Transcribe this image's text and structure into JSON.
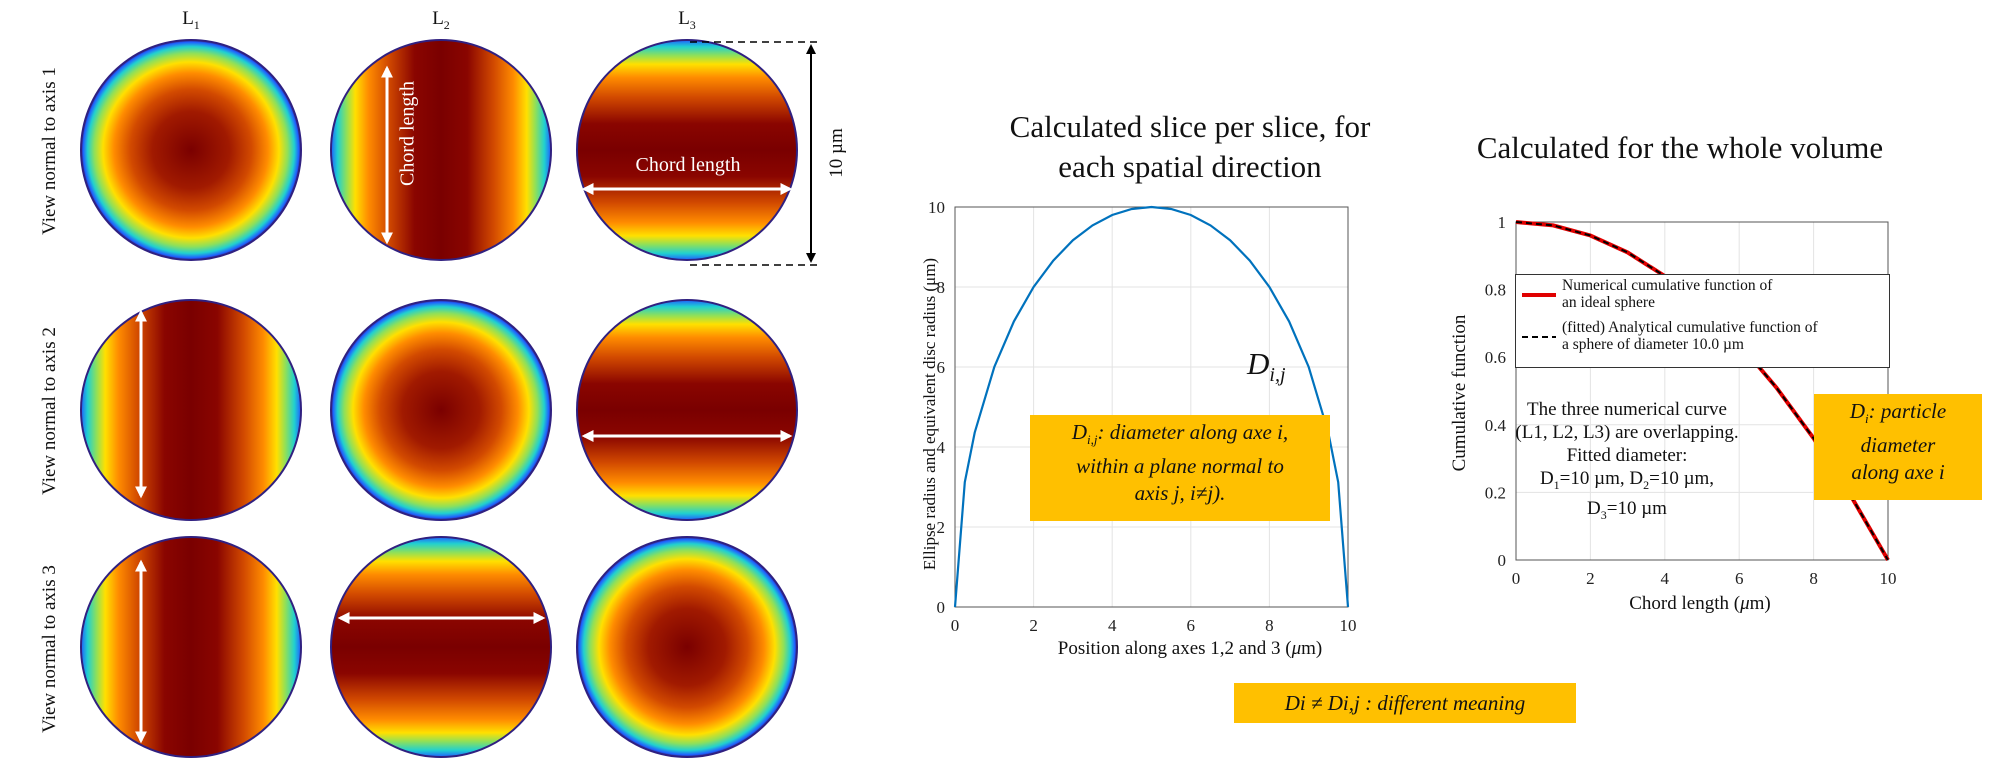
{
  "columns": [
    "L",
    "L",
    "L"
  ],
  "column_subs": [
    "1",
    "2",
    "3"
  ],
  "rows": [
    "View normal to axis 1",
    "View normal to axis 2",
    "View normal to axis 3"
  ],
  "panel_labels": {
    "chord_vertical": "Chord length",
    "chord_horizontal": "Chord length",
    "dimension": "10 µm"
  },
  "titles": {
    "slice_line1": "Calculated slice per slice, for",
    "slice_line2": "each spatial direction",
    "volume": "Calculated for the whole volume"
  },
  "notes": {
    "dij_label_main": "D",
    "dij_label_sub": "i,j",
    "dij_desc_sym": "D",
    "dij_desc_sub": "i,j",
    "dij_desc_line1": ": diameter along axe i,",
    "dij_desc_line2": "within a plane normal to",
    "dij_desc_line3": "axis j, i≠j).",
    "di_sym": "D",
    "di_sub": "i",
    "di_line1": ": particle",
    "di_line2": "diameter",
    "di_line3": "along axe i",
    "bottom": "Di ≠ Di,j : different meaning"
  },
  "legend": {
    "entry1_line1": "Numerical cumulative function of",
    "entry1_line2": "an ideal sphere",
    "entry2_line1": "(fitted) Analytical cumulative function of",
    "entry2_line2": "a sphere of diameter 10.0 µm"
  },
  "annotation": {
    "line1": "The three numerical curve",
    "line2": "(L1, L2, L3) are overlapping.",
    "line3": "Fitted diameter:",
    "d1": "D",
    "d1_sub": "1",
    "d1_val": "=10 µm, ",
    "d2": "D",
    "d2_sub": "2",
    "d2_val": "=10 µm,",
    "d3": "D",
    "d3_sub": "3",
    "d3_val": "=10 µm"
  },
  "colors": {
    "line_blue": "#0072bd",
    "line_red": "#e00000",
    "note_bg": "#ffc000"
  },
  "chart_data": [
    {
      "type": "line",
      "title": "",
      "xlabel_main": "Position along axes 1,2 and 3 (",
      "xlabel_unit": "μ",
      "xlabel_end": "m)",
      "ylabel": "Ellipse radius and equivalent disc radius (μm)",
      "xlim": [
        0,
        10
      ],
      "ylim": [
        0,
        10
      ],
      "xticks": [
        0,
        2,
        4,
        6,
        8,
        10
      ],
      "yticks": [
        0,
        2,
        4,
        6,
        8,
        10
      ],
      "grid": true,
      "series": [
        {
          "x": [
            0,
            0.25,
            0.5,
            1,
            1.5,
            2,
            2.5,
            3,
            3.5,
            4,
            4.5,
            5,
            5.5,
            6,
            6.5,
            7,
            7.5,
            8,
            8.5,
            9,
            9.5,
            9.75,
            10
          ],
          "y": [
            0,
            3.12,
            4.36,
            6.0,
            7.14,
            8.0,
            8.66,
            9.17,
            9.54,
            9.8,
            9.95,
            10,
            9.95,
            9.8,
            9.54,
            9.17,
            8.66,
            8.0,
            7.14,
            6.0,
            4.36,
            3.12,
            0
          ]
        }
      ]
    },
    {
      "type": "line",
      "title": "",
      "xlabel_main": "Chord length (",
      "xlabel_unit": "μ",
      "xlabel_end": "m)",
      "ylabel": "Cumulative function",
      "xlim": [
        0,
        10
      ],
      "ylim": [
        0,
        1
      ],
      "xticks": [
        0,
        2,
        4,
        6,
        8,
        10
      ],
      "yticks": [
        0,
        0.2,
        0.4,
        0.6,
        0.8,
        1
      ],
      "grid": true,
      "series": [
        {
          "name": "Numerical cumulative function of an ideal sphere",
          "x": [
            0,
            1,
            2,
            3,
            4,
            5,
            6,
            7,
            8,
            9,
            10
          ],
          "y": [
            1,
            0.99,
            0.96,
            0.91,
            0.84,
            0.75,
            0.64,
            0.51,
            0.36,
            0.19,
            0
          ]
        },
        {
          "name": "(fitted) Analytical cumulative function of a sphere of diameter 10.0 µm",
          "x": [
            0,
            1,
            2,
            3,
            4,
            5,
            6,
            7,
            8,
            9,
            10
          ],
          "y": [
            1,
            0.99,
            0.96,
            0.91,
            0.84,
            0.75,
            0.64,
            0.51,
            0.36,
            0.19,
            0
          ]
        }
      ]
    }
  ]
}
